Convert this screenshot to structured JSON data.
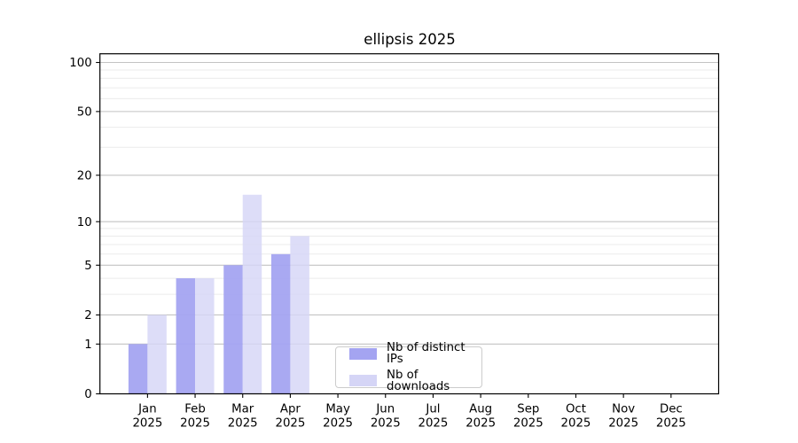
{
  "chart_data": {
    "type": "bar",
    "title": "ellipsis 2025",
    "categories": [
      "Jan",
      "Feb",
      "Mar",
      "Apr",
      "May",
      "Jun",
      "Jul",
      "Aug",
      "Sep",
      "Oct",
      "Nov",
      "Dec"
    ],
    "x_year": "2025",
    "series": [
      {
        "name": "Nb of distinct IPs",
        "color": "#a4a4f1",
        "values": [
          1,
          4,
          5,
          6,
          0,
          0,
          0,
          0,
          0,
          0,
          0,
          0
        ]
      },
      {
        "name": "Nb of downloads",
        "color": "#d5d5f6",
        "values": [
          2,
          4,
          15,
          8,
          0,
          0,
          0,
          0,
          0,
          0,
          0,
          0
        ]
      }
    ],
    "yscale": "log1p",
    "ylim": [
      0,
      113
    ],
    "yticks": [
      0,
      1,
      2,
      5,
      10,
      20,
      50,
      100
    ],
    "yticks_minor": [
      3,
      4,
      6,
      7,
      8,
      9,
      30,
      40,
      60,
      70,
      80,
      90
    ],
    "xlabel": "",
    "ylabel": "",
    "grid": "horizontal",
    "legend_position": "lower-center-inside",
    "colors": {
      "grid_major": "#c3c3c3",
      "grid_minor": "#ebebeb",
      "axis": "#000000",
      "text": "#000000",
      "background": "#ffffff"
    }
  }
}
